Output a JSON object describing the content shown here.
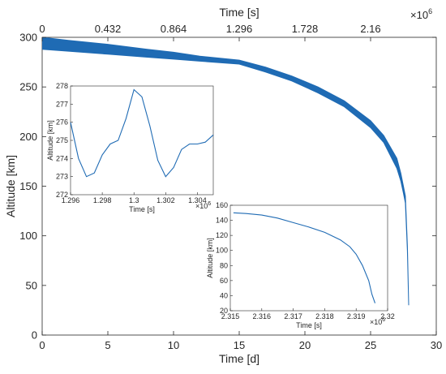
{
  "chart_data": [
    {
      "id": "main",
      "type": "area",
      "xlabel": "Time [d]",
      "ylabel": "Altitude [km]",
      "xlim": [
        0,
        30
      ],
      "ylim": [
        0,
        300
      ],
      "xticks": [
        0,
        5,
        10,
        15,
        20,
        25,
        30
      ],
      "yticks": [
        0,
        50,
        100,
        150,
        200,
        250,
        300
      ],
      "top_axis": {
        "label": "Time [s]",
        "ticks": [
          "0",
          "0.432",
          "0.864",
          "1.296",
          "1.728",
          "2.16"
        ],
        "tick_values_days": [
          0,
          5,
          10,
          15,
          20,
          25
        ],
        "exponent": "×10",
        "exponent_power": "6"
      },
      "series_color": "#1f6bb4",
      "band": {
        "x": [
          0,
          2,
          5,
          8,
          10,
          12,
          15,
          17,
          19,
          21,
          23,
          25,
          26,
          27,
          27.3,
          27.5,
          27.65,
          27.8,
          27.9
        ],
        "upper": [
          300,
          297,
          293,
          288,
          285,
          281,
          277,
          270,
          261,
          250,
          236,
          216,
          201,
          178,
          163,
          150,
          140,
          90,
          30
        ],
        "lower": [
          288,
          286,
          283,
          280,
          278,
          276,
          273,
          265,
          256,
          244,
          230,
          209,
          194,
          168,
          155,
          143,
          133,
          85,
          30
        ]
      }
    },
    {
      "id": "inset-1",
      "type": "line",
      "xlabel": "Time [s]",
      "ylabel": "Altitude [km]",
      "xlim": [
        1.296,
        1.305
      ],
      "ylim": [
        272,
        278
      ],
      "xticks": [
        "1.296",
        "1.298",
        "1.3",
        "1.302",
        "1.304"
      ],
      "xtick_values": [
        1.296,
        1.298,
        1.3,
        1.302,
        1.304
      ],
      "yticks": [
        272,
        273,
        274,
        275,
        276,
        277,
        278
      ],
      "exponent": "×10",
      "exponent_power": "6",
      "series_color": "#1f6bb4",
      "x": [
        1.296,
        1.2965,
        1.297,
        1.2975,
        1.298,
        1.2985,
        1.299,
        1.2995,
        1.3,
        1.3005,
        1.301,
        1.3015,
        1.302,
        1.3025,
        1.303,
        1.3035,
        1.304,
        1.3045,
        1.305
      ],
      "y": [
        276,
        274,
        273,
        273.2,
        274.2,
        274.8,
        275,
        276.2,
        277.8,
        277.4,
        275.8,
        273.9,
        273,
        273.5,
        274.5,
        274.8,
        274.8,
        274.9,
        275.3
      ]
    },
    {
      "id": "inset-2",
      "type": "line",
      "xlabel": "Time [s]",
      "ylabel": "Altitude [km]",
      "xlim": [
        2.315,
        2.32
      ],
      "ylim": [
        20,
        160
      ],
      "xticks": [
        "2.315",
        "2.316",
        "2.317",
        "2.318",
        "2.319",
        "2.32"
      ],
      "xtick_values": [
        2.315,
        2.316,
        2.317,
        2.318,
        2.319,
        2.32
      ],
      "yticks": [
        20,
        40,
        60,
        80,
        100,
        120,
        140,
        160
      ],
      "exponent": "×10",
      "exponent_power": "6",
      "series_color": "#1f6bb4",
      "x": [
        2.3151,
        2.3155,
        2.316,
        2.3165,
        2.317,
        2.3175,
        2.318,
        2.3185,
        2.3188,
        2.319,
        2.3192,
        2.3194,
        2.3195,
        2.3196
      ],
      "y": [
        150,
        149,
        147,
        143,
        137,
        131,
        124,
        114,
        105,
        95,
        80,
        60,
        42,
        30
      ]
    }
  ]
}
